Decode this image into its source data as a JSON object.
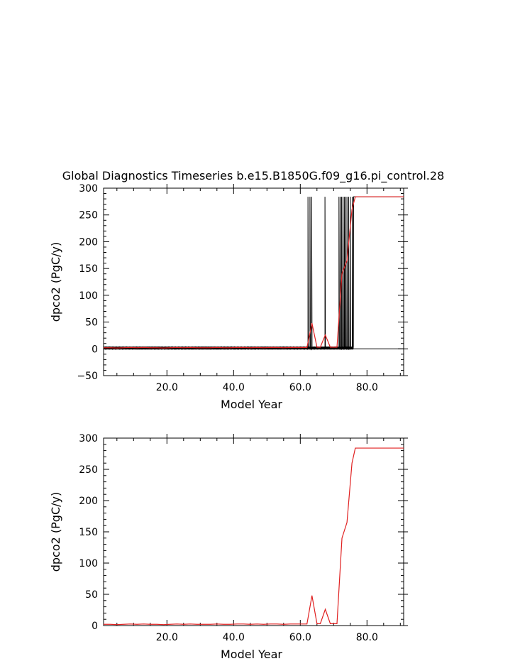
{
  "page_title": "Global Diagnostics Timeseries b.e15.B1850G.f09_g16.pi_control.28",
  "chart_data": [
    {
      "type": "line",
      "panel": "top",
      "title": "Global Diagnostics Timeseries b.e15.B1850G.f09_g16.pi_control.28",
      "xlabel": "Model Year",
      "ylabel": "dpco2 (PgC/y)",
      "xlim": [
        1,
        91
      ],
      "ylim": [
        -50,
        300
      ],
      "x_ticks": [
        20,
        40,
        60,
        80
      ],
      "x_tick_labels": [
        "20.0",
        "40.0",
        "60.0",
        "80.0"
      ],
      "y_ticks": [
        -50,
        0,
        50,
        100,
        150,
        200,
        250,
        300
      ],
      "y_tick_labels": [
        "-50",
        "0",
        "50",
        "100",
        "150",
        "200",
        "250",
        "300"
      ],
      "zero_line": true,
      "series": [
        {
          "color": "#000000",
          "style": "monthly",
          "baseline_x_range": [
            1,
            62
          ],
          "baseline_amplitude": 3,
          "spike_years": [
            62.3,
            62.9,
            63.4,
            67.4,
            71.6,
            72.0,
            72.4,
            72.8,
            73.2,
            73.6,
            74.0,
            74.5,
            75.0,
            75.6
          ],
          "spike_max": 284,
          "spike_min": 0,
          "saturation_start": 76,
          "saturation_value": 284,
          "x_end": 91
        },
        {
          "color": "#e02020",
          "style": "annual",
          "x": [
            1,
            3,
            5,
            7,
            9,
            11,
            13,
            15,
            17,
            19,
            21,
            23,
            25,
            27,
            29,
            31,
            33,
            35,
            37,
            39,
            41,
            43,
            45,
            47,
            49,
            51,
            53,
            55,
            57,
            59,
            61,
            62,
            63.5,
            65,
            66,
            67.5,
            69,
            70,
            71,
            72.5,
            74,
            75.5,
            76.5,
            78,
            80,
            85,
            91
          ],
          "y": [
            2,
            2,
            1.5,
            2,
            2.5,
            2,
            2.5,
            2,
            2,
            1.5,
            2,
            2.5,
            2,
            2.5,
            2,
            2,
            2,
            2.5,
            2,
            2,
            2.5,
            2.5,
            2,
            2.5,
            2,
            2.5,
            2.5,
            2,
            2.5,
            2.5,
            2.5,
            2.5,
            48,
            3,
            3,
            26,
            3,
            3,
            3,
            140,
            165,
            260,
            284,
            284,
            284,
            284,
            284
          ]
        }
      ]
    },
    {
      "type": "line",
      "panel": "bottom",
      "xlabel": "Model Year",
      "ylabel": "dpco2 (PgC/y)",
      "xlim": [
        1,
        91
      ],
      "ylim": [
        0,
        300
      ],
      "x_ticks": [
        20,
        40,
        60,
        80
      ],
      "x_tick_labels": [
        "20.0",
        "40.0",
        "60.0",
        "80.0"
      ],
      "y_ticks": [
        0,
        50,
        100,
        150,
        200,
        250,
        300
      ],
      "y_tick_labels": [
        "0",
        "50",
        "100",
        "150",
        "200",
        "250",
        "300"
      ],
      "series": [
        {
          "color": "#e02020",
          "x": [
            1,
            3,
            5,
            7,
            9,
            11,
            13,
            15,
            17,
            19,
            21,
            23,
            25,
            27,
            29,
            31,
            33,
            35,
            37,
            39,
            41,
            43,
            45,
            47,
            49,
            51,
            53,
            55,
            57,
            59,
            61,
            62,
            63.5,
            65,
            66,
            67.5,
            69,
            70,
            71,
            72.5,
            74,
            75.5,
            76.5,
            78,
            80,
            85,
            91
          ],
          "y": [
            2,
            2,
            1.5,
            2,
            2.5,
            2,
            2.5,
            2,
            2,
            1.5,
            2,
            2.5,
            2,
            2.5,
            2,
            2,
            2,
            2.5,
            2,
            2,
            2.5,
            2.5,
            2,
            2.5,
            2,
            2.5,
            2.5,
            2,
            2.5,
            2.5,
            2.5,
            2.5,
            48,
            3,
            3,
            26,
            3,
            3,
            3,
            140,
            165,
            260,
            284,
            284,
            284,
            284,
            284
          ]
        }
      ]
    }
  ]
}
